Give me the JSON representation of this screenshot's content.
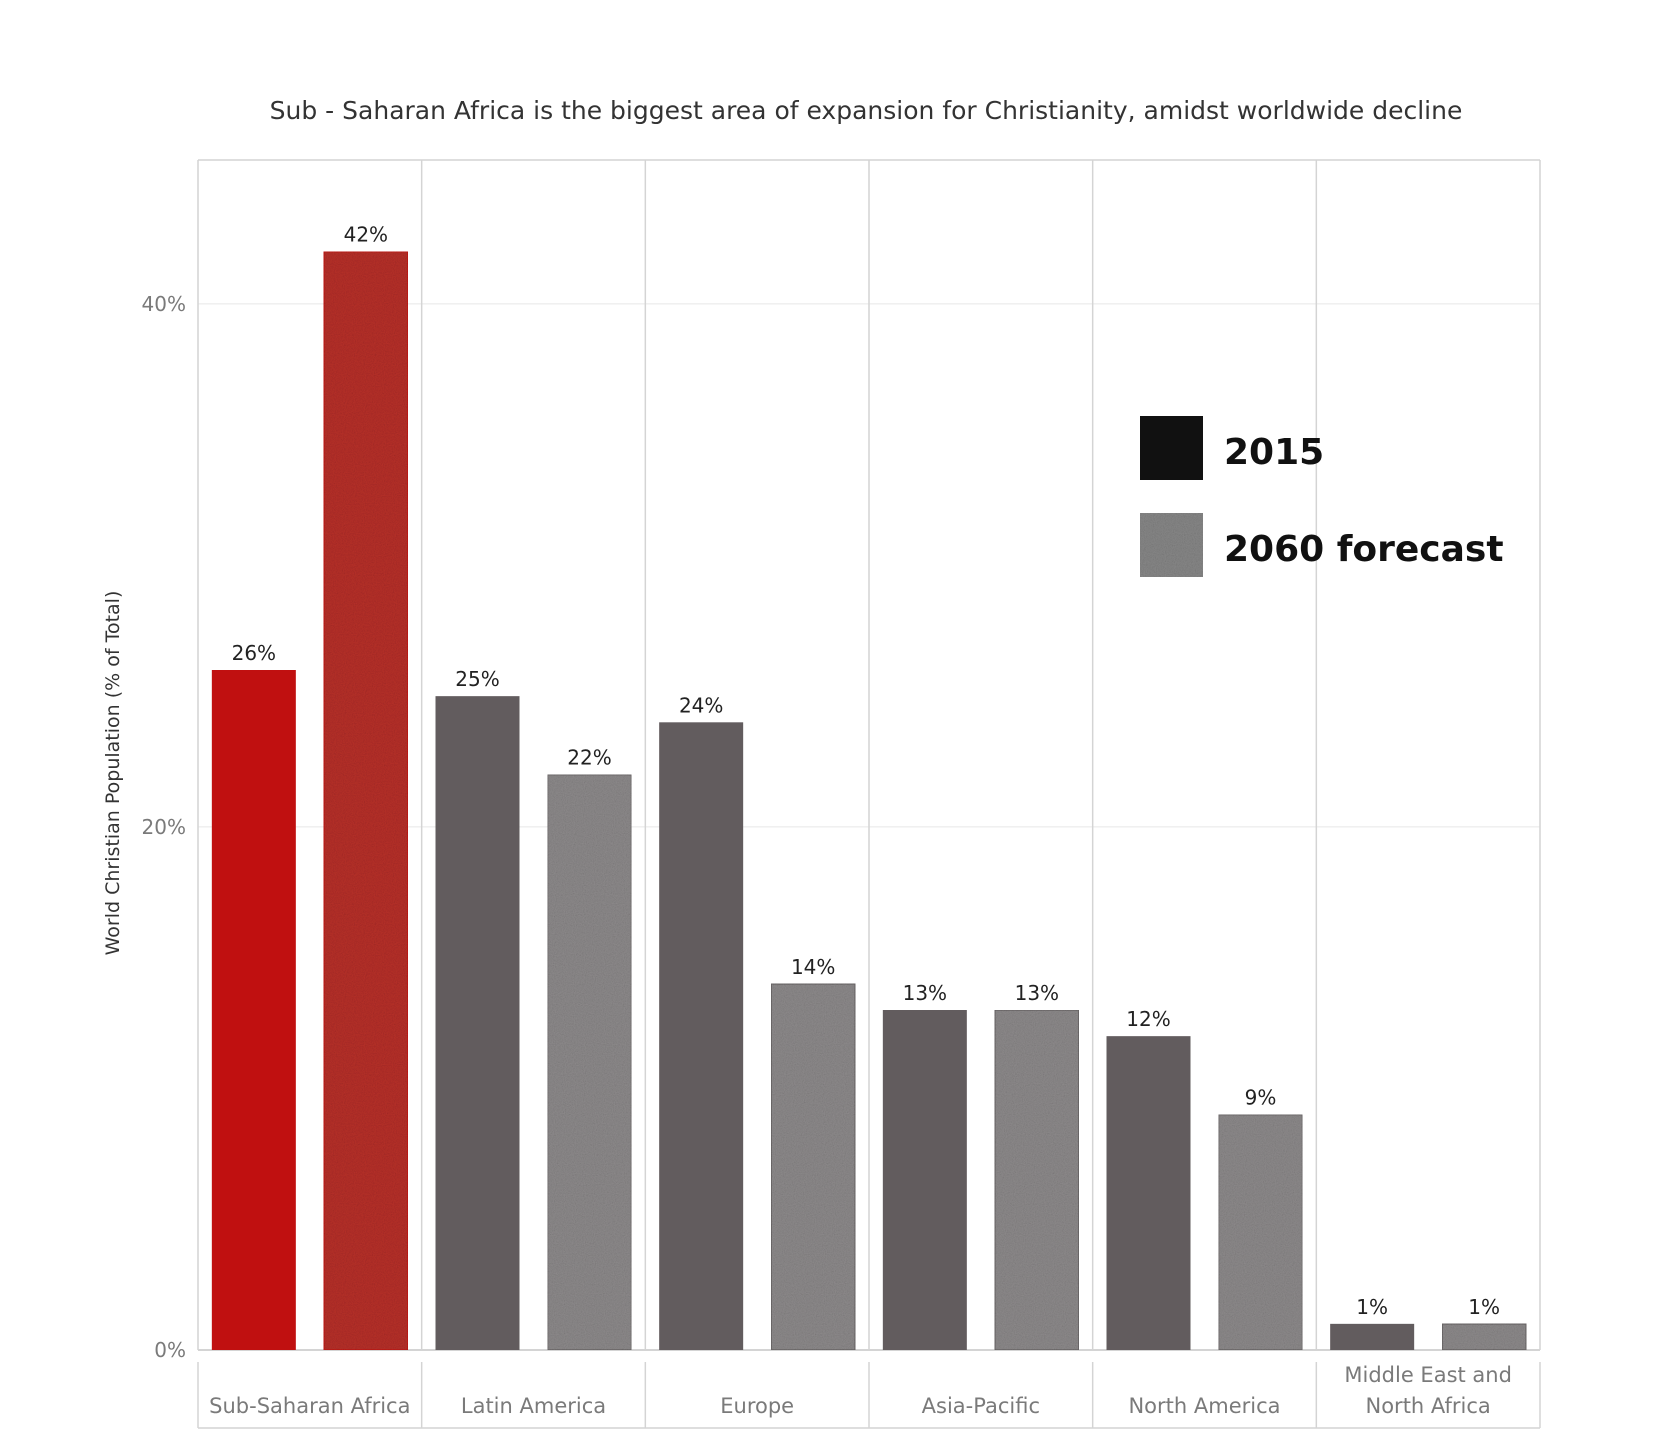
{
  "chart_data": {
    "type": "bar",
    "title": "Sub - Saharan Africa is the biggest area of expansion for Christianity, amidst worldwide decline",
    "ylabel": "World Christian Population (% of Total)",
    "xlabel": "",
    "ylim": [
      0,
      45.5
    ],
    "yticks": [
      0,
      20,
      40
    ],
    "ytick_labels": [
      "0%",
      "20%",
      "40%"
    ],
    "grid": "horizontal and vertical category dividers",
    "legend_position": "top-right",
    "categories": [
      [
        "Sub-Saharan Africa"
      ],
      [
        "Latin America"
      ],
      [
        "Europe"
      ],
      [
        "Asia-Pacific"
      ],
      [
        "North America"
      ],
      [
        "Middle East and",
        "North Africa"
      ]
    ],
    "series": [
      {
        "name": "2015",
        "values": [
          26,
          25,
          24,
          13,
          12,
          1
        ],
        "labels": [
          "26%",
          "25%",
          "24%",
          "13%",
          "12%",
          "1%"
        ]
      },
      {
        "name": "2060 forecast",
        "values": [
          42,
          22,
          14,
          13,
          9,
          1
        ],
        "labels": [
          "42%",
          "22%",
          "14%",
          "13%",
          "9%",
          "1%"
        ]
      }
    ]
  },
  "colors": {
    "highlight_2015": "#c01010",
    "highlight_2060": "#b8302a",
    "bar_2015": "#625c5e",
    "bar_2060": "#8e8b8c",
    "legend_2015": "#111111",
    "legend_2060": "#888888",
    "grid": "#e8e8e8",
    "divider": "#d4d4d4",
    "axis_text": "#7a7a7a",
    "title_text": "#333333"
  }
}
